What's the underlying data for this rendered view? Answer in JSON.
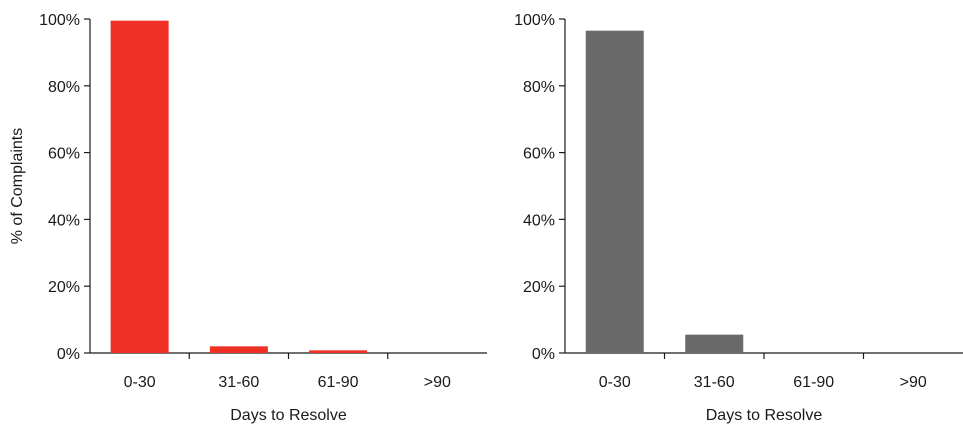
{
  "colors": {
    "left_bar": "#ee3124",
    "right_bar": "#696a69",
    "axis": "#1a1a1a"
  },
  "chart_data": [
    {
      "type": "bar",
      "categories": [
        "0-30",
        "31-60",
        "61-90",
        ">90"
      ],
      "values": [
        99.5,
        2.0,
        0.8,
        0.0
      ],
      "title": "",
      "xlabel": "Days to Resolve",
      "ylabel": "% of Complaints",
      "ylim": [
        0,
        100
      ],
      "yticks": [
        "0%",
        "20%",
        "40%",
        "60%",
        "80%",
        "100%"
      ],
      "grid": false,
      "bar_color": "#ee3124"
    },
    {
      "type": "bar",
      "categories": [
        "0-30",
        "31-60",
        "61-90",
        ">90"
      ],
      "values": [
        96.5,
        5.5,
        0.0,
        0.0
      ],
      "title": "",
      "xlabel": "Days to Resolve",
      "ylabel": "",
      "ylim": [
        0,
        100
      ],
      "yticks": [
        "0%",
        "20%",
        "40%",
        "60%",
        "80%",
        "100%"
      ],
      "grid": false,
      "bar_color": "#696a69"
    }
  ]
}
